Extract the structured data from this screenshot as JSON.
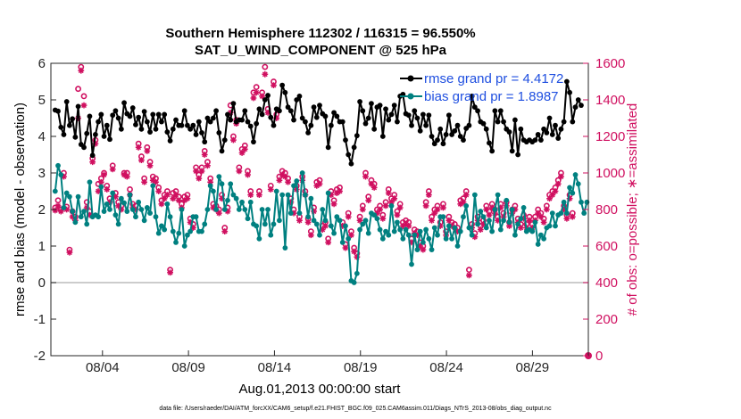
{
  "chart_data": {
    "type": "line",
    "title": "Southern Hemisphere 112302 / 116315 = 96.550%",
    "subtitle": "SAT_U_WIND_COMPONENT @ 525 hPa",
    "xlabel": "Aug.01,2013 00:00:00 start",
    "ylabel_left": "rmse and bias (model - observation)",
    "ylabel_right": "# of obs: o=possible; ∗=assimilated",
    "footer": "data file: /Users/raeder/DAI/ATM_forcXX/CAM6_setup/f.e21.FHIST_BGC.f09_025.CAM6assim.011/Diags_NTrS_2013-08/obs_diag_output.nc",
    "x_tick_labels": [
      "08/04",
      "08/09",
      "08/14",
      "08/19",
      "08/24",
      "08/29"
    ],
    "x_tick_days": [
      3,
      8,
      13,
      18,
      23,
      28
    ],
    "xlim_days": [
      0,
      31.25
    ],
    "ylim_left": [
      -2,
      6
    ],
    "y_ticks_left": [
      "-2",
      "-1",
      "0",
      "1",
      "2",
      "3",
      "4",
      "5",
      "6"
    ],
    "ylim_right": [
      0,
      1600
    ],
    "y_ticks_right": [
      "0",
      "200",
      "400",
      "600",
      "800",
      "1000",
      "1200",
      "1400",
      "1600"
    ],
    "zero_line": 0,
    "colors": {
      "rmse": "#000000",
      "bias": "#008080",
      "obs": "#d01060",
      "zero": "#bbbbbb",
      "legend_text": "#1f4fe0"
    },
    "series": [
      {
        "name": "rmse grand pr = 4.4172",
        "axis": "left",
        "marker": "star",
        "values": [
          4.72,
          4.69,
          4.25,
          4.05,
          4.95,
          4.3,
          4.48,
          3.98,
          4.82,
          3.78,
          3.7,
          4.08,
          4.55,
          3.48,
          4.05,
          4.4,
          4.6,
          4.0,
          4.3,
          3.92,
          4.58,
          4.7,
          4.5,
          4.2,
          4.92,
          4.62,
          4.55,
          4.78,
          4.32,
          4.52,
          4.2,
          4.68,
          4.4,
          4.12,
          4.6,
          4.2,
          4.6,
          4.4,
          4.6,
          4.12,
          3.88,
          4.2,
          4.45,
          4.3,
          4.3,
          4.7,
          4.3,
          4.2,
          4.3,
          4.05,
          4.4,
          4.1,
          3.85,
          4.5,
          4.4,
          4.5,
          4.7,
          4.1,
          3.6,
          3.9,
          4.6,
          4.45,
          4.9,
          4.4,
          4.45,
          4.45,
          4.7,
          4.4,
          4.28,
          3.85,
          4.35,
          4.75,
          4.6,
          5.0,
          5.12,
          4.52,
          4.3,
          4.75,
          4.7,
          5.4,
          5.2,
          4.8,
          4.7,
          4.45,
          5.0,
          5.1,
          4.5,
          4.4,
          4.1,
          4.3,
          4.8,
          4.52,
          4.85,
          4.62,
          4.55,
          3.7,
          4.3,
          4.65,
          4.55,
          4.4,
          4.4,
          3.9,
          3.5,
          3.25,
          3.7,
          4.02,
          4.95,
          4.7,
          4.35,
          4.5,
          4.9,
          4.2,
          4.8,
          4.85,
          4.0,
          4.75,
          4.45,
          4.6,
          4.85,
          4.4,
          5.1,
          5.15,
          4.62,
          4.58,
          4.3,
          4.7,
          4.5,
          4.15,
          4.6,
          4.3,
          4.58,
          4.0,
          3.8,
          3.9,
          4.2,
          3.8,
          4.05,
          4.58,
          4.05,
          4.15,
          4.3,
          4.0,
          3.9,
          4.22,
          4.3,
          5.1,
          4.8,
          4.7,
          4.4,
          4.35,
          4.2,
          3.82,
          3.6,
          4.7,
          4.4,
          4.7,
          4.4,
          4.2,
          4.12,
          3.6,
          4.45,
          3.5,
          4.2,
          3.9,
          3.85,
          3.9,
          3.85,
          3.9,
          4.05,
          3.9,
          4.2,
          4.1,
          4.5,
          4.05,
          4.3,
          3.95,
          4.2,
          4.4,
          5.5,
          5.2,
          4.4,
          4.8,
          5.0,
          4.85
        ]
      },
      {
        "name": "bias grand pr = 1.8987",
        "axis": "left",
        "marker": "circle",
        "values": [
          2.5,
          3.2,
          2.95,
          2.05,
          2.45,
          2.35,
          1.95,
          1.65,
          2.35,
          1.8,
          1.95,
          1.6,
          2.75,
          1.8,
          1.85,
          1.8,
          2.62,
          1.95,
          2.15,
          2.0,
          2.45,
          1.85,
          1.6,
          2.3,
          2.18,
          1.95,
          2.4,
          2.0,
          1.8,
          2.2,
          2.0,
          1.7,
          2.05,
          1.9,
          2.65,
          1.8,
          1.35,
          1.55,
          1.45,
          2.15,
          1.8,
          1.4,
          1.1,
          1.35,
          2.0,
          1.0,
          1.3,
          1.4,
          1.8,
          1.8,
          1.4,
          1.4,
          1.6,
          2.0,
          2.65,
          2.5,
          2.0,
          2.9,
          2.7,
          2.0,
          2.25,
          2.7,
          2.4,
          2.3,
          2.0,
          2.2,
          2.0,
          1.75,
          2.2,
          1.6,
          1.55,
          1.2,
          2.0,
          1.6,
          2.0,
          1.3,
          1.6,
          2.5,
          1.7,
          2.4,
          0.95,
          2.4,
          1.9,
          2.65,
          2.78,
          1.9,
          3.0,
          2.4,
          1.8,
          2.3,
          1.7,
          1.6,
          1.3,
          2.0,
          1.7,
          2.45,
          1.55,
          1.35,
          1.8,
          1.7,
          1.1,
          1.55,
          1.2,
          0.05,
          0.0,
          0.25,
          1.45,
          1.6,
          1.7,
          1.35,
          1.9,
          1.85,
          1.75,
          1.45,
          1.2,
          1.4,
          1.3,
          2.1,
          1.4,
          1.65,
          1.45,
          1.2,
          1.45,
          1.3,
          0.5,
          1.3,
          0.9,
          1.4,
          1.1,
          1.45,
          1.2,
          0.9,
          1.5,
          1.3,
          1.8,
          1.8,
          1.2,
          1.55,
          1.2,
          1.5,
          1.0,
          1.4,
          1.8,
          2.1,
          1.5,
          1.3,
          2.4,
          1.6,
          1.95,
          1.8,
          1.5,
          1.7,
          1.4,
          2.0,
          2.4,
          1.45,
          1.7,
          2.25,
          1.65,
          2.0,
          1.3,
          1.6,
          1.75,
          2.05,
          1.4,
          1.45,
          1.4,
          1.65,
          1.05,
          1.3,
          1.2,
          1.5,
          1.55,
          1.9,
          1.55,
          1.85,
          1.9,
          2.2,
          1.9,
          2.6,
          2.45,
          2.95,
          2.7,
          2.2,
          1.9,
          2.2
        ]
      },
      {
        "name": "obs possible",
        "axis": "right",
        "marker": "ring",
        "values": [
          810,
          850,
          800,
          1000,
          815,
          580,
          790,
          760,
          1460,
          1580,
          1420,
          840,
          790,
          1080,
          1180,
          940,
          970,
          1000,
          930,
          860,
          1040,
          890,
          840,
          820,
          1000,
          1000,
          910,
          830,
          820,
          1160,
          1090,
          970,
          1140,
          1060,
          980,
          970,
          920,
          850,
          880,
          900,
          470,
          890,
          900,
          870,
          830,
          870,
          880,
          750,
          720,
          1030,
          990,
          1030,
          1120,
          1060,
          970,
          830,
          820,
          800,
          880,
          700,
          810,
          1370,
          1200,
          1290,
          1030,
          1130,
          1150,
          1010,
          900,
          1440,
          1470,
          900,
          1440,
          1580,
          1350,
          930,
          1500,
          1320,
          980,
          1010,
          1000,
          970,
          860,
          800,
          930,
          760,
          980,
          900,
          750,
          680,
          810,
          950,
          960,
          710,
          730,
          640,
          900,
          850,
          910,
          920,
          730,
          610,
          780,
          680,
          590,
          560,
          760,
          820,
          1000,
          870,
          960,
          940,
          800,
          820,
          770,
          840,
          910,
          860,
          880,
          790,
          830,
          730,
          740,
          730,
          640,
          690,
          680,
          620,
          600,
          840,
          900,
          760,
          800,
          820,
          730,
          830,
          680,
          760,
          730,
          720,
          700,
          850,
          860,
          900,
          470,
          720,
          670,
          760,
          710,
          740,
          820,
          790,
          830,
          800,
          760,
          830,
          780,
          840,
          730,
          800,
          820,
          750,
          720,
          770,
          720,
          760,
          720,
          760,
          800,
          780,
          750,
          820,
          880,
          900,
          920,
          960,
          1000,
          820,
          770,
          880,
          780
        ]
      },
      {
        "name": "obs assimilated",
        "axis": "right",
        "marker": "asterisk",
        "values": [
          795,
          820,
          790,
          980,
          800,
          565,
          760,
          740,
          1300,
          1560,
          1370,
          810,
          770,
          1060,
          1160,
          900,
          950,
          990,
          910,
          840,
          1020,
          870,
          820,
          800,
          990,
          980,
          880,
          810,
          800,
          1140,
          1070,
          950,
          1120,
          1040,
          960,
          950,
          900,
          830,
          860,
          880,
          455,
          860,
          880,
          850,
          810,
          850,
          860,
          730,
          700,
          1010,
          970,
          1010,
          1100,
          1040,
          950,
          810,
          800,
          780,
          860,
          680,
          790,
          1330,
          1180,
          1270,
          1010,
          1110,
          1130,
          990,
          880,
          1410,
          1440,
          880,
          1420,
          1540,
          1330,
          910,
          1480,
          1300,
          960,
          990,
          980,
          950,
          840,
          780,
          910,
          740,
          960,
          880,
          730,
          660,
          790,
          930,
          940,
          690,
          710,
          620,
          880,
          830,
          890,
          900,
          710,
          590,
          760,
          660,
          570,
          540,
          740,
          800,
          980,
          850,
          940,
          920,
          780,
          800,
          750,
          820,
          890,
          840,
          860,
          770,
          810,
          710,
          720,
          710,
          620,
          670,
          660,
          600,
          580,
          820,
          880,
          740,
          780,
          800,
          710,
          810,
          660,
          740,
          710,
          700,
          680,
          830,
          840,
          880,
          440,
          700,
          650,
          740,
          690,
          720,
          800,
          770,
          810,
          780,
          740,
          810,
          760,
          820,
          710,
          780,
          800,
          730,
          700,
          750,
          700,
          740,
          700,
          740,
          780,
          760,
          730,
          800,
          860,
          880,
          900,
          940,
          980,
          800,
          750,
          860,
          760
        ]
      }
    ],
    "right_axis_end_marker_value": 0
  }
}
